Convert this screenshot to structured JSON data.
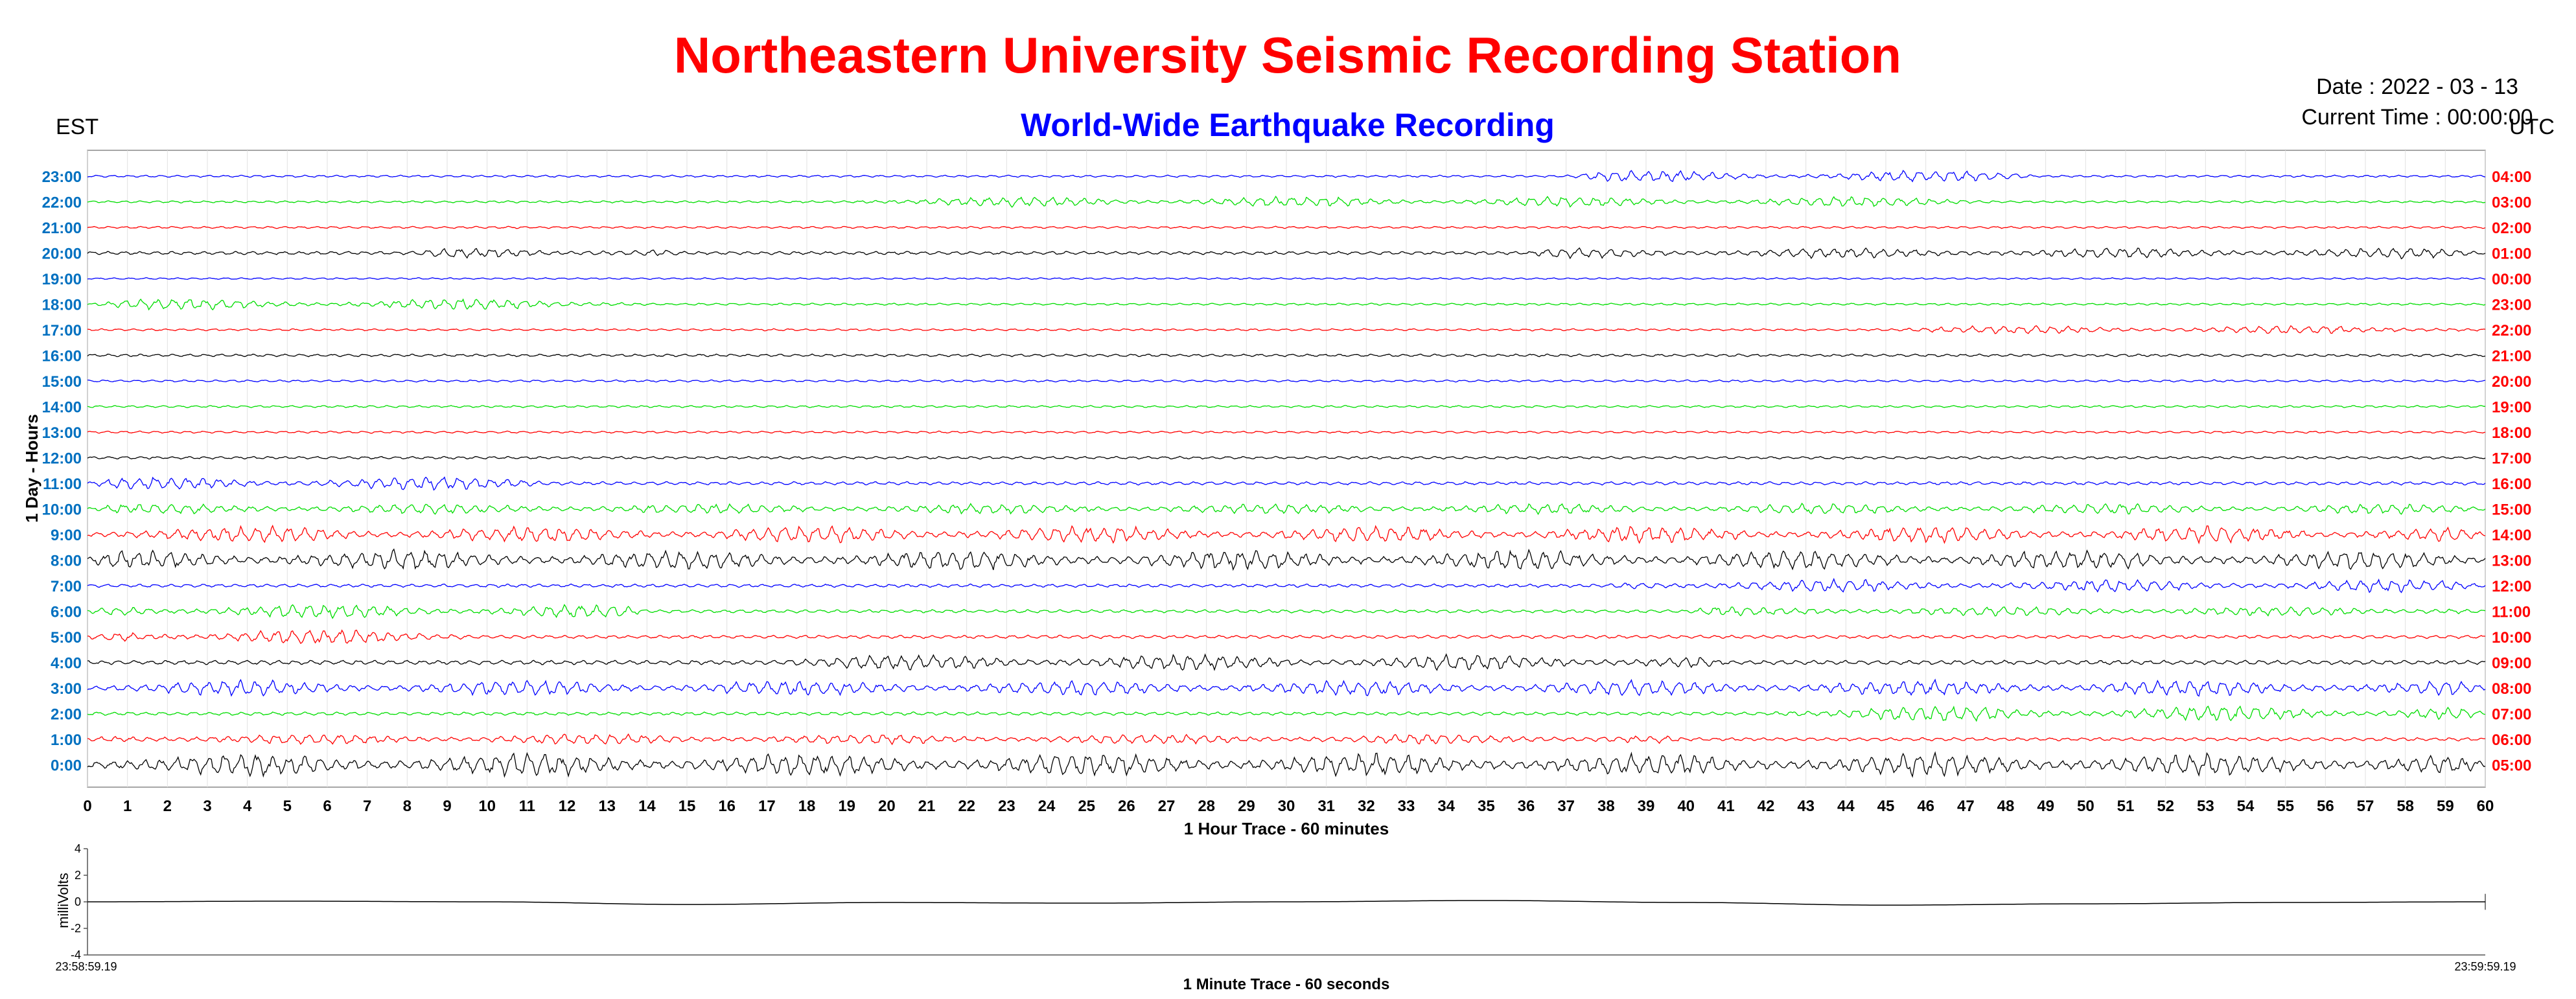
{
  "header": {
    "title": "Northeastern University Seismic Recording Station",
    "subtitle": "World-Wide Earthquake Recording",
    "date_text": "Date : 2022 - 03 - 13",
    "time_text": "Current Time : 00:00:00",
    "left_zone": "EST",
    "right_zone": "UTC"
  },
  "colors": {
    "title": "#ff0000",
    "subtitle": "#0000ff",
    "est_labels": "#0070c0",
    "utc_labels": "#ff0000",
    "trace_cycle": [
      "#000000",
      "#ff0000",
      "#00dd00",
      "#0000ff"
    ]
  },
  "chart_data": [
    {
      "type": "line",
      "name": "helicorder-24h",
      "ylabel": "1 Day - Hours",
      "xlabel": "1 Hour Trace - 60 minutes",
      "xlim": [
        0,
        60
      ],
      "x_ticks": [
        "0",
        "1",
        "2",
        "3",
        "4",
        "5",
        "6",
        "7",
        "8",
        "9",
        "10",
        "11",
        "12",
        "13",
        "14",
        "15",
        "16",
        "17",
        "18",
        "19",
        "20",
        "21",
        "22",
        "23",
        "24",
        "25",
        "26",
        "27",
        "28",
        "29",
        "30",
        "31",
        "32",
        "33",
        "34",
        "35",
        "36",
        "37",
        "38",
        "39",
        "40",
        "41",
        "42",
        "43",
        "44",
        "45",
        "46",
        "47",
        "48",
        "49",
        "50",
        "51",
        "52",
        "53",
        "54",
        "55",
        "56",
        "57",
        "58",
        "59",
        "60"
      ],
      "grid": "vertical",
      "est_hours": [
        "23:00",
        "22:00",
        "21:00",
        "20:00",
        "19:00",
        "18:00",
        "17:00",
        "16:00",
        "15:00",
        "14:00",
        "13:00",
        "12:00",
        "11:00",
        "10:00",
        "9:00",
        "8:00",
        "7:00",
        "6:00",
        "5:00",
        "4:00",
        "3:00",
        "2:00",
        "1:00",
        "0:00"
      ],
      "utc_hours": [
        "04:00",
        "03:00",
        "02:00",
        "01:00",
        "00:00",
        "23:00",
        "22:00",
        "21:00",
        "20:00",
        "19:00",
        "18:00",
        "17:00",
        "16:00",
        "15:00",
        "14:00",
        "13:00",
        "12:00",
        "11:00",
        "10:00",
        "09:00",
        "08:00",
        "07:00",
        "06:00",
        "05:00"
      ],
      "trace_activity": [
        {
          "events": [
            {
              "from": 37,
              "to": 49,
              "amp": 0.45
            }
          ],
          "base": 0.1
        },
        {
          "events": [
            {
              "from": 19,
              "to": 48,
              "amp": 0.4
            }
          ],
          "base": 0.1
        },
        {
          "events": [],
          "base": 0.1
        },
        {
          "events": [
            {
              "from": 8,
              "to": 15,
              "amp": 0.35
            },
            {
              "from": 36,
              "to": 60,
              "amp": 0.35
            }
          ],
          "base": 0.15
        },
        {
          "events": [],
          "base": 0.08
        },
        {
          "events": [
            {
              "from": 0,
              "to": 14,
              "amp": 0.45
            }
          ],
          "base": 0.1
        },
        {
          "events": [
            {
              "from": 45,
              "to": 60,
              "amp": 0.3
            }
          ],
          "base": 0.1
        },
        {
          "events": [],
          "base": 0.12
        },
        {
          "events": [],
          "base": 0.1
        },
        {
          "events": [],
          "base": 0.1
        },
        {
          "events": [],
          "base": 0.1
        },
        {
          "events": [],
          "base": 0.12
        },
        {
          "events": [
            {
              "from": 0,
              "to": 12,
              "amp": 0.5
            }
          ],
          "base": 0.15
        },
        {
          "events": [
            {
              "from": 0,
              "to": 60,
              "amp": 0.35
            }
          ],
          "base": 0.15
        },
        {
          "events": [
            {
              "from": 0,
              "to": 60,
              "amp": 0.6
            }
          ],
          "base": 0.2
        },
        {
          "events": [
            {
              "from": 0,
              "to": 60,
              "amp": 0.7
            }
          ],
          "base": 0.25
        },
        {
          "events": [
            {
              "from": 38,
              "to": 60,
              "amp": 0.45
            }
          ],
          "base": 0.15
        },
        {
          "events": [
            {
              "from": 0,
              "to": 14,
              "amp": 0.55
            },
            {
              "from": 40,
              "to": 60,
              "amp": 0.3
            }
          ],
          "base": 0.15
        },
        {
          "events": [
            {
              "from": 0,
              "to": 10,
              "amp": 0.6
            }
          ],
          "base": 0.15
        },
        {
          "events": [
            {
              "from": 17,
              "to": 41,
              "amp": 0.55
            }
          ],
          "base": 0.2
        },
        {
          "events": [
            {
              "from": 0,
              "to": 60,
              "amp": 0.55
            }
          ],
          "base": 0.2
        },
        {
          "events": [
            {
              "from": 42,
              "to": 60,
              "amp": 0.6
            }
          ],
          "base": 0.15
        },
        {
          "events": [
            {
              "from": 0,
              "to": 40,
              "amp": 0.35
            }
          ],
          "base": 0.15
        },
        {
          "events": [
            {
              "from": 0,
              "to": 60,
              "amp": 0.8
            }
          ],
          "base": 0.3
        }
      ]
    },
    {
      "type": "line",
      "name": "minute-trace",
      "ylabel": "milliVolts",
      "xlabel": "1 Minute Trace  - 60 seconds",
      "ylim": [
        -4,
        4
      ],
      "y_ticks": [
        "4",
        "2",
        "0",
        "-2",
        "-4"
      ],
      "x_start_label": "23:58:59.19",
      "x_end_label": "23:59:59.19",
      "x": [
        0,
        5,
        10,
        15,
        20,
        25,
        30,
        35,
        40,
        45,
        50,
        55,
        60
      ],
      "y": [
        0.0,
        0.05,
        0.0,
        -0.2,
        -0.05,
        -0.1,
        0.0,
        0.1,
        -0.05,
        -0.25,
        -0.15,
        -0.05,
        0.0
      ]
    }
  ]
}
